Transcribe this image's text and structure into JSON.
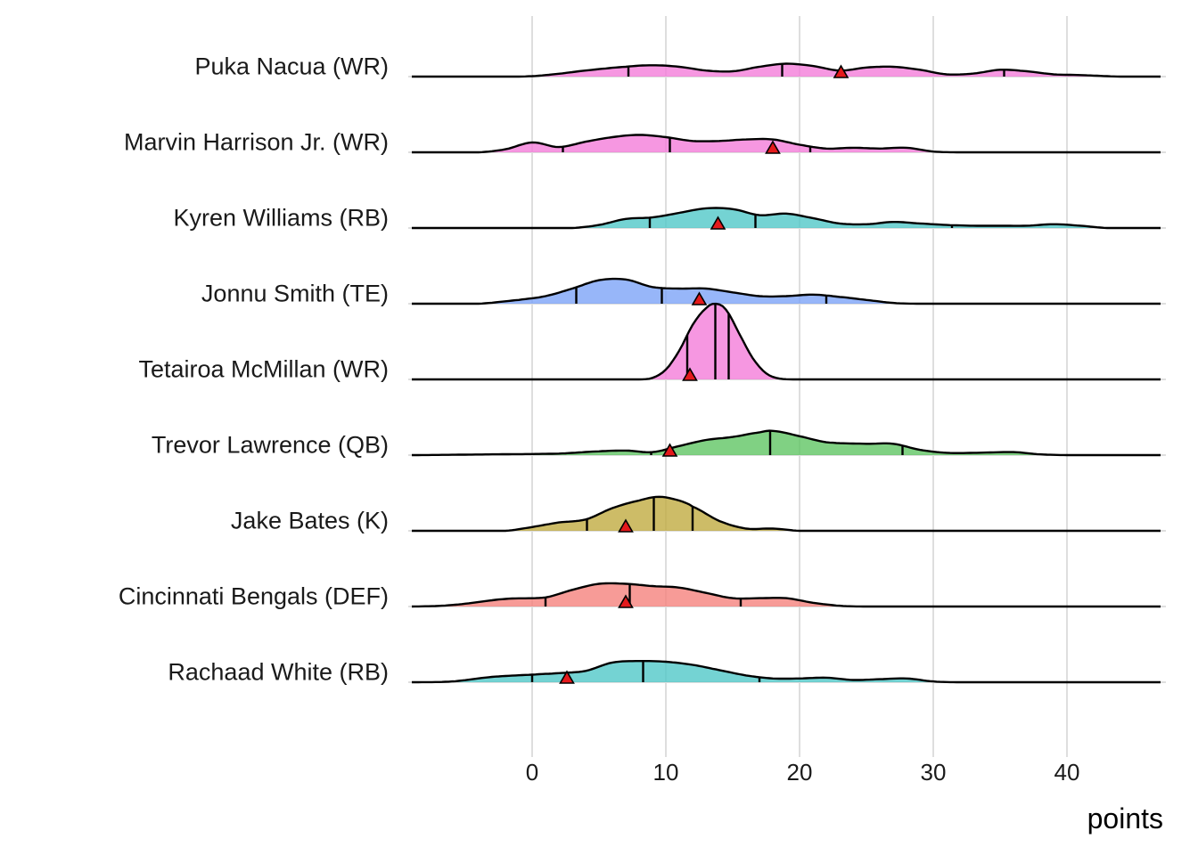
{
  "chart_data": {
    "type": "ridgeline",
    "title": "",
    "xlabel": "points",
    "ylabel": "",
    "xlim": [
      -9,
      47
    ],
    "xticks": [
      0,
      10,
      20,
      30,
      40
    ],
    "xtick_labels": [
      "0",
      "10",
      "20",
      "30",
      "40"
    ],
    "grid": true,
    "legend": "none",
    "density_units": "relative height (1 = tallest ridge)",
    "series": [
      {
        "name": "Puka Nacua (WR)",
        "color": "#f37ad8",
        "quantiles": [
          7.2,
          18.7,
          35.3
        ],
        "marker": 23.1,
        "density": [
          [
            -9,
            0
          ],
          [
            -1,
            0
          ],
          [
            1,
            0.02
          ],
          [
            4,
            0.08
          ],
          [
            7,
            0.13
          ],
          [
            9,
            0.15
          ],
          [
            11,
            0.13
          ],
          [
            13,
            0.08
          ],
          [
            15,
            0.07
          ],
          [
            17,
            0.13
          ],
          [
            19,
            0.17
          ],
          [
            21,
            0.14
          ],
          [
            23,
            0.08
          ],
          [
            25,
            0.12
          ],
          [
            27,
            0.13
          ],
          [
            29,
            0.09
          ],
          [
            31,
            0.03
          ],
          [
            33,
            0.04
          ],
          [
            35,
            0.09
          ],
          [
            37,
            0.07
          ],
          [
            39,
            0.03
          ],
          [
            41,
            0.02
          ],
          [
            44,
            0.0
          ],
          [
            47,
            0
          ]
        ]
      },
      {
        "name": "Marvin Harrison Jr. (WR)",
        "color": "#f37ad8",
        "quantiles": [
          2.3,
          10.3,
          20.8
        ],
        "marker": 18.0,
        "density": [
          [
            -9,
            0
          ],
          [
            -4,
            0
          ],
          [
            -2,
            0.04
          ],
          [
            0,
            0.13
          ],
          [
            2,
            0.07
          ],
          [
            4,
            0.14
          ],
          [
            6,
            0.2
          ],
          [
            8,
            0.23
          ],
          [
            10,
            0.2
          ],
          [
            12,
            0.15
          ],
          [
            14,
            0.15
          ],
          [
            16,
            0.17
          ],
          [
            18,
            0.17
          ],
          [
            20,
            0.1
          ],
          [
            22,
            0.05
          ],
          [
            24,
            0.06
          ],
          [
            26,
            0.05
          ],
          [
            28,
            0.06
          ],
          [
            30,
            0.01
          ],
          [
            32,
            0.0
          ],
          [
            47,
            0
          ]
        ]
      },
      {
        "name": "Kyren Williams (RB)",
        "color": "#4dc6c7",
        "quantiles": [
          8.8,
          16.7,
          31.4
        ],
        "marker": 13.9,
        "density": [
          [
            -9,
            0
          ],
          [
            3,
            0
          ],
          [
            5,
            0.04
          ],
          [
            7,
            0.12
          ],
          [
            9,
            0.14
          ],
          [
            11,
            0.2
          ],
          [
            13,
            0.26
          ],
          [
            15,
            0.25
          ],
          [
            17,
            0.17
          ],
          [
            19,
            0.19
          ],
          [
            21,
            0.13
          ],
          [
            23,
            0.06
          ],
          [
            25,
            0.05
          ],
          [
            27,
            0.08
          ],
          [
            29,
            0.06
          ],
          [
            31,
            0.04
          ],
          [
            33,
            0.03
          ],
          [
            35,
            0.03
          ],
          [
            37,
            0.03
          ],
          [
            39,
            0.05
          ],
          [
            41,
            0.03
          ],
          [
            43,
            0.0
          ],
          [
            47,
            0
          ]
        ]
      },
      {
        "name": "Jonnu Smith (TE)",
        "color": "#7aa2f7",
        "quantiles": [
          3.3,
          9.7,
          22.0
        ],
        "marker": 12.5,
        "density": [
          [
            -9,
            0
          ],
          [
            -4,
            0
          ],
          [
            -1,
            0.05
          ],
          [
            1,
            0.1
          ],
          [
            3,
            0.2
          ],
          [
            5,
            0.31
          ],
          [
            7,
            0.32
          ],
          [
            9,
            0.22
          ],
          [
            11,
            0.2
          ],
          [
            13,
            0.2
          ],
          [
            15,
            0.15
          ],
          [
            17,
            0.1
          ],
          [
            19,
            0.1
          ],
          [
            21,
            0.12
          ],
          [
            23,
            0.09
          ],
          [
            25,
            0.05
          ],
          [
            27,
            0.01
          ],
          [
            29,
            0.0
          ],
          [
            47,
            0
          ]
        ]
      },
      {
        "name": "Tetairoa McMillan (WR)",
        "color": "#f37ad8",
        "quantiles": [
          11.6,
          13.7,
          14.7
        ],
        "marker": 11.8,
        "density": [
          [
            -9,
            0
          ],
          [
            8,
            0
          ],
          [
            9,
            0.02
          ],
          [
            10,
            0.13
          ],
          [
            11,
            0.38
          ],
          [
            12,
            0.72
          ],
          [
            13,
            0.94
          ],
          [
            13.7,
            1.0
          ],
          [
            14.5,
            0.92
          ],
          [
            15.5,
            0.6
          ],
          [
            16.5,
            0.28
          ],
          [
            17.5,
            0.08
          ],
          [
            18.5,
            0.01
          ],
          [
            20,
            0
          ],
          [
            47,
            0
          ]
        ]
      },
      {
        "name": "Trevor Lawrence (QB)",
        "color": "#5cc460",
        "quantiles": [
          8.9,
          17.8,
          27.7
        ],
        "marker": 10.3,
        "density": [
          [
            -9,
            0
          ],
          [
            -3,
            0.01
          ],
          [
            2,
            0.02
          ],
          [
            5,
            0.05
          ],
          [
            7,
            0.06
          ],
          [
            9,
            0.04
          ],
          [
            11,
            0.12
          ],
          [
            13,
            0.2
          ],
          [
            15,
            0.24
          ],
          [
            17,
            0.3
          ],
          [
            18,
            0.32
          ],
          [
            20,
            0.25
          ],
          [
            22,
            0.17
          ],
          [
            25,
            0.15
          ],
          [
            27,
            0.15
          ],
          [
            29,
            0.07
          ],
          [
            31,
            0.03
          ],
          [
            33,
            0.03
          ],
          [
            36,
            0.04
          ],
          [
            38,
            0.01
          ],
          [
            40,
            0.0
          ],
          [
            47,
            0
          ]
        ]
      },
      {
        "name": "Jake Bates (K)",
        "color": "#bfa93c",
        "quantiles": [
          4.1,
          9.1,
          12.0
        ],
        "marker": 7.0,
        "density": [
          [
            -9,
            0
          ],
          [
            -2,
            0
          ],
          [
            0,
            0.05
          ],
          [
            2,
            0.11
          ],
          [
            4,
            0.15
          ],
          [
            6,
            0.3
          ],
          [
            8,
            0.4
          ],
          [
            9.5,
            0.45
          ],
          [
            11,
            0.4
          ],
          [
            12,
            0.32
          ],
          [
            14,
            0.13
          ],
          [
            16,
            0.03
          ],
          [
            18,
            0.03
          ],
          [
            20,
            0.0
          ],
          [
            47,
            0
          ]
        ]
      },
      {
        "name": "Cincinnati Bengals (DEF)",
        "color": "#f57f7a",
        "quantiles": [
          1.0,
          7.3,
          15.6
        ],
        "marker": 7.0,
        "density": [
          [
            -9,
            0
          ],
          [
            -6,
            0.02
          ],
          [
            -2,
            0.1
          ],
          [
            1,
            0.12
          ],
          [
            3,
            0.22
          ],
          [
            5,
            0.3
          ],
          [
            7,
            0.3
          ],
          [
            9,
            0.27
          ],
          [
            11,
            0.25
          ],
          [
            13,
            0.18
          ],
          [
            15,
            0.11
          ],
          [
            17,
            0.11
          ],
          [
            19,
            0.11
          ],
          [
            21,
            0.05
          ],
          [
            23,
            0.01
          ],
          [
            25,
            0.0
          ],
          [
            47,
            0
          ]
        ]
      },
      {
        "name": "Rachaad White (RB)",
        "color": "#4dc6c7",
        "quantiles": [
          0.0,
          8.3,
          17.0
        ],
        "marker": 2.6,
        "density": [
          [
            -9,
            0
          ],
          [
            -6,
            0.01
          ],
          [
            -3,
            0.07
          ],
          [
            0,
            0.1
          ],
          [
            2,
            0.12
          ],
          [
            4,
            0.15
          ],
          [
            6,
            0.26
          ],
          [
            8,
            0.28
          ],
          [
            10,
            0.27
          ],
          [
            12,
            0.23
          ],
          [
            14,
            0.16
          ],
          [
            16,
            0.09
          ],
          [
            18,
            0.05
          ],
          [
            20,
            0.05
          ],
          [
            22,
            0.06
          ],
          [
            24,
            0.03
          ],
          [
            26,
            0.04
          ],
          [
            28,
            0.05
          ],
          [
            30,
            0.01
          ],
          [
            32,
            0.0
          ],
          [
            47,
            0
          ]
        ]
      }
    ]
  }
}
